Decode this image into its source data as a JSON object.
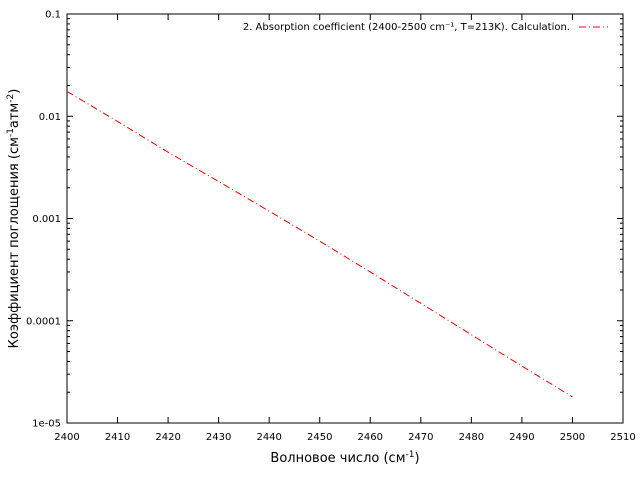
{
  "chart_data": {
    "type": "line",
    "title": "",
    "xlabel": {
      "base": "Волновое число (см",
      "sup": "-1",
      "tail": ")"
    },
    "ylabel": {
      "base": "Коэффициент поглощения (см",
      "sup1": "-1",
      "mid": "атм",
      "sup2": "-2",
      "tail": ")"
    },
    "xlim": [
      2400,
      2510
    ],
    "ylim": [
      1e-05,
      0.1
    ],
    "yscale": "log",
    "grid": false,
    "legend_position": "top-right",
    "x_ticks": [
      2400,
      2410,
      2420,
      2430,
      2440,
      2450,
      2460,
      2470,
      2480,
      2490,
      2500,
      2510
    ],
    "x_tick_labels": [
      "2400",
      "2410",
      "2420",
      "2430",
      "2440",
      "2450",
      "2460",
      "2470",
      "2480",
      "2490",
      "2500",
      "2510"
    ],
    "y_ticks": [
      1e-05,
      0.0001,
      0.001,
      0.01,
      0.1
    ],
    "y_tick_labels": [
      "1e-05",
      "0.0001",
      "0.001",
      "0.01",
      "0.1"
    ],
    "series": [
      {
        "name": "2. Absorption coefficient (2400-2500 cm⁻¹, T=213K). Calculation.",
        "color": "#ff0000",
        "dash": "dash-dot",
        "x": [
          2400,
          2410,
          2420,
          2430,
          2440,
          2450,
          2460,
          2470,
          2480,
          2490,
          2500
        ],
        "y": [
          0.0175,
          0.0089,
          0.00445,
          0.0023,
          0.00118,
          0.0006,
          0.0003,
          0.000148,
          7.3e-05,
          3.6e-05,
          1.8e-05
        ]
      }
    ]
  }
}
